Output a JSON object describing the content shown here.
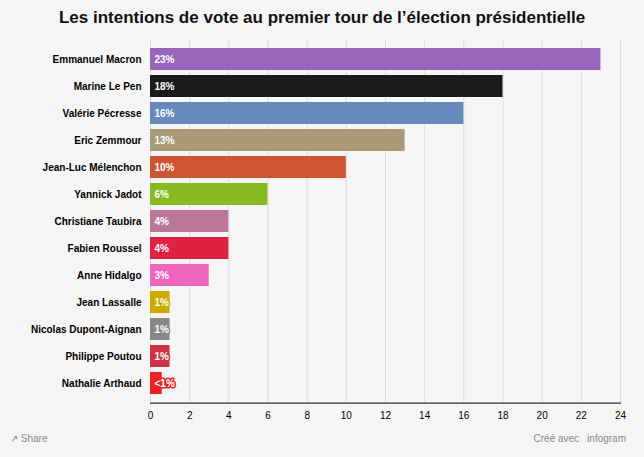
{
  "chart_data": {
    "type": "bar",
    "orientation": "horizontal",
    "title": "Les intentions de vote au premier tour de l’élection présidentielle",
    "categories": [
      "Emmanuel Macron",
      "Marine Le Pen",
      "Valérie Pécresse",
      "Eric Zemmour",
      "Jean-Luc Mélenchon",
      "Yannick Jadot",
      "Christiane Taubira",
      "Fabien Roussel",
      "Anne Hidalgo",
      "Jean Lassalle",
      "Nicolas Dupont-Aignan",
      "Philippe Poutou",
      "Nathalie Arthaud"
    ],
    "values": [
      23,
      18,
      16,
      13,
      10,
      6,
      4,
      4,
      3,
      1,
      1,
      1,
      0.6
    ],
    "value_labels": [
      "23%",
      "18%",
      "16%",
      "13%",
      "10%",
      "6%",
      "4%",
      "4%",
      "3%",
      "1%",
      "1%",
      "1%",
      "<1%"
    ],
    "colors": [
      "#9966BB",
      "#1a1a1a",
      "#6688BB",
      "#AA9977",
      "#CC5533",
      "#88BB22",
      "#BB7799",
      "#DD2244",
      "#EE66BB",
      "#CCAA00",
      "#888888",
      "#CC3344",
      "#EE2222"
    ],
    "xlim": [
      0,
      24
    ],
    "xticks": [
      0,
      2,
      4,
      6,
      8,
      10,
      12,
      14,
      16,
      18,
      20,
      22,
      24
    ],
    "grid": true,
    "data_labels": true,
    "annotations": [
      "↗ Share",
      "Créé avec",
      "infogram"
    ]
  }
}
